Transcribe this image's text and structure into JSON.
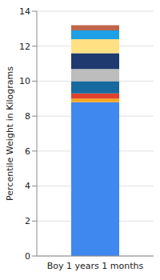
{
  "chart_data": {
    "type": "bar",
    "stacked": true,
    "categories": [
      "Boy 1 years 1 months"
    ],
    "ylabel": "Percentile Weight in Kilograms",
    "series": [
      {
        "color": "#3f88f0",
        "values": [
          8.8
        ]
      },
      {
        "color": "#f5a623",
        "values": [
          0.2
        ]
      },
      {
        "color": "#e0412b",
        "values": [
          0.3
        ]
      },
      {
        "color": "#17699e",
        "values": [
          0.7
        ]
      },
      {
        "color": "#bdbdbd",
        "values": [
          0.7
        ]
      },
      {
        "color": "#1e3a6e",
        "values": [
          0.9
        ]
      },
      {
        "color": "#ffe082",
        "values": [
          0.8
        ]
      },
      {
        "color": "#1ea0e6",
        "values": [
          0.5
        ]
      },
      {
        "color": "#c0654a",
        "values": [
          0.3
        ]
      }
    ],
    "ylim": [
      0,
      14
    ],
    "yticks": [
      0,
      2,
      4,
      6,
      8,
      10,
      12,
      14
    ],
    "grid": true
  }
}
